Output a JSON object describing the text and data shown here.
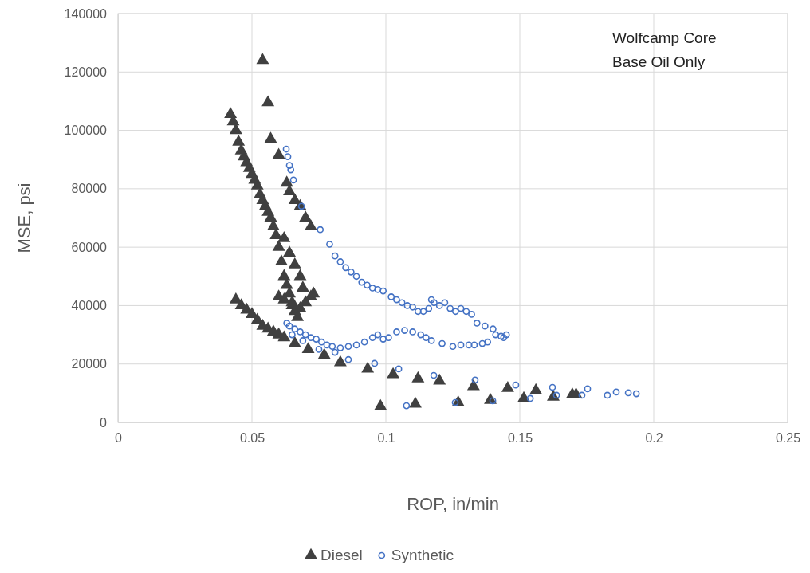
{
  "chart_data": {
    "type": "scatter",
    "xlabel": "ROP, in/min",
    "ylabel": "MSE, psi",
    "annotations": [
      "Wolfcamp Core",
      "Base Oil Only"
    ],
    "xlim": [
      0,
      0.25
    ],
    "xticks": [
      0,
      0.05,
      0.1,
      0.15,
      0.2,
      0.25
    ],
    "ylim": [
      0,
      140000
    ],
    "yticks": [
      0,
      20000,
      40000,
      60000,
      80000,
      100000,
      120000,
      140000
    ],
    "grid": true,
    "legend": "bottom",
    "series": [
      {
        "name": "Diesel",
        "color": "#404040",
        "marker": "triangle",
        "x": [
          0.054,
          0.056,
          0.057,
          0.06,
          0.042,
          0.043,
          0.044,
          0.045,
          0.046,
          0.047,
          0.048,
          0.049,
          0.05,
          0.051,
          0.052,
          0.053,
          0.054,
          0.055,
          0.056,
          0.057,
          0.058,
          0.059,
          0.06,
          0.061,
          0.062,
          0.063,
          0.064,
          0.065,
          0.066,
          0.063,
          0.064,
          0.066,
          0.068,
          0.07,
          0.072,
          0.062,
          0.064,
          0.066,
          0.068,
          0.069,
          0.06,
          0.062,
          0.065,
          0.068,
          0.07,
          0.072,
          0.073,
          0.067,
          0.044,
          0.046,
          0.048,
          0.05,
          0.052,
          0.054,
          0.056,
          0.058,
          0.06,
          0.062,
          0.066,
          0.071,
          0.077,
          0.083,
          0.0932,
          0.1027,
          0.112,
          0.12,
          0.098,
          0.111,
          0.127,
          0.1327,
          0.139,
          0.1455,
          0.1515,
          0.156,
          0.1625,
          0.1696,
          0.171
        ],
        "values": [
          124000,
          109500,
          97000,
          91500,
          105500,
          103000,
          100000,
          96000,
          93000,
          91000,
          89000,
          87000,
          85000,
          83000,
          81000,
          78000,
          76000,
          74000,
          72000,
          70000,
          67000,
          64000,
          60000,
          55000,
          50000,
          47000,
          44000,
          40000,
          38000,
          82000,
          79000,
          76000,
          74000,
          70000,
          67000,
          63000,
          58000,
          54000,
          50000,
          46000,
          43000,
          42000,
          41000,
          39000,
          41000,
          43000,
          44000,
          36000,
          42000,
          40000,
          38500,
          37000,
          35000,
          33000,
          32000,
          31000,
          30000,
          29000,
          27000,
          25000,
          23000,
          20500,
          18300,
          16400,
          15000,
          14200,
          5500,
          6300,
          6800,
          12300,
          7600,
          11700,
          8200,
          10900,
          8700,
          9500,
          9500
        ]
      },
      {
        "name": "Synthetic",
        "color": "#4472c4",
        "marker": "circle",
        "x": [
          0.0628,
          0.0634,
          0.064,
          0.0645,
          0.0655,
          0.0685,
          0.0755,
          0.079,
          0.081,
          0.083,
          0.085,
          0.087,
          0.089,
          0.091,
          0.093,
          0.095,
          0.097,
          0.099,
          0.102,
          0.104,
          0.106,
          0.108,
          0.11,
          0.112,
          0.114,
          0.116,
          0.117,
          0.118,
          0.12,
          0.122,
          0.124,
          0.126,
          0.128,
          0.13,
          0.132,
          0.134,
          0.137,
          0.14,
          0.141,
          0.143,
          0.144,
          0.145,
          0.138,
          0.136,
          0.133,
          0.131,
          0.128,
          0.125,
          0.121,
          0.117,
          0.115,
          0.113,
          0.11,
          0.107,
          0.104,
          0.101,
          0.099,
          0.097,
          0.095,
          0.092,
          0.089,
          0.086,
          0.083,
          0.08,
          0.078,
          0.076,
          0.074,
          0.072,
          0.07,
          0.068,
          0.066,
          0.064,
          0.063,
          0.065,
          0.069,
          0.075,
          0.081,
          0.086,
          0.0958,
          0.1048,
          0.1179,
          0.1333,
          0.1485,
          0.1622,
          0.1753,
          0.1637,
          0.1539,
          0.1399,
          0.1259,
          0.1077,
          0.1827,
          0.186,
          0.1905,
          0.1935,
          0.1732
        ],
        "values": [
          93600,
          91000,
          88000,
          86500,
          83000,
          74000,
          66000,
          61000,
          57000,
          55000,
          53000,
          51500,
          50000,
          48000,
          47000,
          46000,
          45500,
          45000,
          43000,
          42000,
          41000,
          40000,
          39500,
          38000,
          38000,
          39000,
          42000,
          41000,
          40000,
          41000,
          39000,
          38000,
          39000,
          38000,
          37000,
          34000,
          33000,
          32000,
          30000,
          29500,
          29000,
          30000,
          27500,
          27000,
          26500,
          26500,
          26500,
          26000,
          27000,
          28000,
          29000,
          30000,
          31000,
          31500,
          31000,
          29000,
          28500,
          30000,
          29000,
          27500,
          26500,
          26000,
          25500,
          26000,
          26500,
          27500,
          28500,
          29000,
          30000,
          31000,
          32000,
          33000,
          34000,
          30000,
          28000,
          25000,
          24000,
          21500,
          20200,
          18300,
          16100,
          14500,
          12800,
          12000,
          11500,
          9300,
          8200,
          7400,
          6800,
          5700,
          9300,
          10400,
          10100,
          9800,
          9300
        ]
      }
    ]
  }
}
